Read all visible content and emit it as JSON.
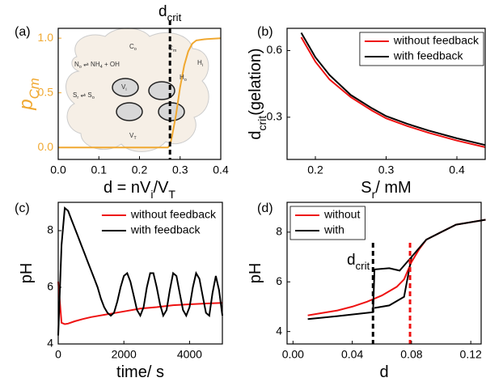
{
  "chart_data": [
    {
      "type": "line",
      "panel": "(a)",
      "xlabel": [
        "d = nV",
        "i",
        "/V",
        "T"
      ],
      "ylabel": [
        "p",
        "Cm"
      ],
      "ycolor": "#f0a830",
      "xlim": [
        0,
        0.4
      ],
      "ylim": [
        -0.11,
        1.09
      ],
      "xticks": [
        {
          "value": 0,
          "label": "0.0"
        },
        {
          "value": 0.1,
          "label": "0.1"
        },
        {
          "value": 0.2,
          "label": "0.2"
        },
        {
          "value": 0.3,
          "label": "0.3"
        },
        {
          "value": 0.4,
          "label": "0.4"
        }
      ],
      "yticks": [
        {
          "value": 0,
          "label": "0.0"
        },
        {
          "value": 0.5,
          "label": "0.5"
        },
        {
          "value": 1,
          "label": "1.0"
        }
      ],
      "series": [
        {
          "color": "#f0a830",
          "x": [
            0,
            0.26,
            0.27,
            0.275,
            0.28,
            0.29,
            0.3,
            0.31,
            0.32,
            0.33,
            0.34,
            0.36,
            0.4
          ],
          "values": [
            0,
            0,
            0,
            0.02,
            0.1,
            0.3,
            0.55,
            0.75,
            0.88,
            0.95,
            0.98,
            0.99,
            1.0
          ]
        }
      ],
      "annotations": [
        {
          "text": [
            "d",
            "crit"
          ],
          "x": 0.275,
          "color": "#000"
        }
      ],
      "inset_labels": [
        [
          "C",
          "o"
        ],
        [
          "C",
          "m"
        ],
        [
          "N",
          "o",
          " ⇌ NH",
          "4",
          " + OH"
        ],
        [
          "H",
          "i"
        ],
        [
          "H",
          "o"
        ],
        [
          "V",
          "i"
        ],
        [
          "S",
          "r",
          " ⇌ S",
          "o"
        ],
        [
          "V",
          "T"
        ]
      ]
    },
    {
      "type": "line",
      "panel": "(b)",
      "xlabel": [
        "S",
        "r",
        "/ mM"
      ],
      "ylabel": [
        "d",
        "crit",
        "(gelation)"
      ],
      "xlim": [
        0.16,
        0.44
      ],
      "ylim": [
        0.11,
        0.7
      ],
      "xticks": [
        0.2,
        0.3,
        0.4
      ],
      "yticks": [
        0.3,
        0.6
      ],
      "legend": "upper right",
      "legend_frame": true,
      "series": [
        {
          "name": "without feedback",
          "color": "#ee1111",
          "x": [
            0.18,
            0.2,
            0.22,
            0.25,
            0.28,
            0.3,
            0.33,
            0.36,
            0.4,
            0.44
          ],
          "values": [
            0.66,
            0.55,
            0.47,
            0.39,
            0.33,
            0.295,
            0.26,
            0.23,
            0.195,
            0.165
          ]
        },
        {
          "name": "with feedback",
          "color": "#000000",
          "x": [
            0.18,
            0.2,
            0.22,
            0.25,
            0.28,
            0.3,
            0.33,
            0.36,
            0.4,
            0.44
          ],
          "values": [
            0.68,
            0.57,
            0.49,
            0.4,
            0.34,
            0.305,
            0.27,
            0.24,
            0.205,
            0.175
          ]
        }
      ]
    },
    {
      "type": "line",
      "panel": "(c)",
      "xlabel": [
        "time/ s"
      ],
      "ylabel": [
        "pH"
      ],
      "xlim": [
        0,
        5000
      ],
      "ylim": [
        4,
        9
      ],
      "xticks": [
        0,
        2000,
        4000
      ],
      "yticks": [
        4,
        6,
        8
      ],
      "legend": "upper right",
      "legend_frame": false,
      "series": [
        {
          "name": "without feedback",
          "color": "#ee1111",
          "x": [
            0,
            100,
            200,
            300,
            500,
            750,
            1000,
            1500,
            2000,
            2500,
            3000,
            3500,
            4000,
            4500,
            5000
          ],
          "values": [
            6.2,
            4.75,
            4.7,
            4.72,
            4.8,
            4.88,
            4.95,
            5.05,
            5.15,
            5.25,
            5.3,
            5.37,
            5.4,
            5.43,
            5.45
          ]
        },
        {
          "name": "with feedback",
          "color": "#000000",
          "x": [
            0,
            100,
            200,
            300,
            400,
            500,
            600,
            700,
            800,
            900,
            1000,
            1100,
            1200,
            1300,
            1400,
            1500,
            1600,
            1700,
            1800,
            1900,
            2000,
            2100,
            2200,
            2300,
            2400,
            2500,
            2600,
            2700,
            2800,
            2900,
            3000,
            3100,
            3200,
            3300,
            3400,
            3500,
            3600,
            3700,
            3800,
            3900,
            4000,
            4100,
            4200,
            4300,
            4400,
            4500,
            4600,
            4700,
            4800,
            4900,
            5000
          ],
          "values": [
            4.3,
            7.5,
            8.8,
            8.7,
            8.4,
            8.1,
            7.8,
            7.5,
            7.2,
            6.9,
            6.6,
            6.3,
            6.0,
            5.6,
            5.3,
            5.1,
            5.0,
            5.1,
            5.5,
            6.0,
            6.4,
            6.5,
            6.2,
            5.7,
            5.2,
            5.0,
            5.3,
            6.0,
            6.5,
            6.5,
            6.0,
            5.4,
            5.0,
            5.2,
            5.9,
            6.5,
            6.4,
            5.8,
            5.2,
            5.0,
            5.3,
            6.0,
            6.5,
            6.3,
            5.7,
            5.1,
            5.0,
            5.8,
            6.4,
            5.9,
            5.0
          ]
        }
      ]
    },
    {
      "type": "line",
      "panel": "(d)",
      "xlabel": [
        "d"
      ],
      "ylabel": [
        "pH"
      ],
      "xlim": [
        -0.004,
        0.127
      ],
      "ylim": [
        3.5,
        9.2
      ],
      "xticks": [
        {
          "value": 0,
          "label": "0.00"
        },
        {
          "value": 0.04,
          "label": "0.04"
        },
        {
          "value": 0.08,
          "label": "0.08"
        },
        {
          "value": 0.12,
          "label": "0.12"
        }
      ],
      "yticks": [
        4,
        6,
        8
      ],
      "legend": "upper left",
      "legend_frame": true,
      "series": [
        {
          "name": "without",
          "color": "#ee1111",
          "x": [
            0.01,
            0.02,
            0.03,
            0.04,
            0.05,
            0.06,
            0.07,
            0.075,
            0.08,
            0.085,
            0.09,
            0.1,
            0.11,
            0.13
          ],
          "values": [
            4.65,
            4.75,
            4.85,
            5.0,
            5.2,
            5.45,
            5.8,
            6.1,
            6.8,
            7.3,
            7.7,
            8.0,
            8.3,
            8.5
          ]
        },
        {
          "name": "with",
          "color": "#000000",
          "x": [
            0.01,
            0.03,
            0.054,
            0.055,
            0.065,
            0.072,
            0.08,
            0.09,
            0.1,
            0.11,
            0.13,
            null,
            0.055,
            0.065,
            0.075,
            0.08
          ],
          "values": [
            4.5,
            4.62,
            4.78,
            6.5,
            6.55,
            6.45,
            7.0,
            7.7,
            8.0,
            8.3,
            8.5,
            null,
            4.95,
            5.05,
            5.4,
            7.0
          ]
        }
      ],
      "annotations": [
        {
          "text": [
            "d",
            "crit"
          ],
          "x": 0.054,
          "color": "#000"
        },
        {
          "x": 0.079,
          "color": "#ee1111"
        }
      ]
    }
  ]
}
